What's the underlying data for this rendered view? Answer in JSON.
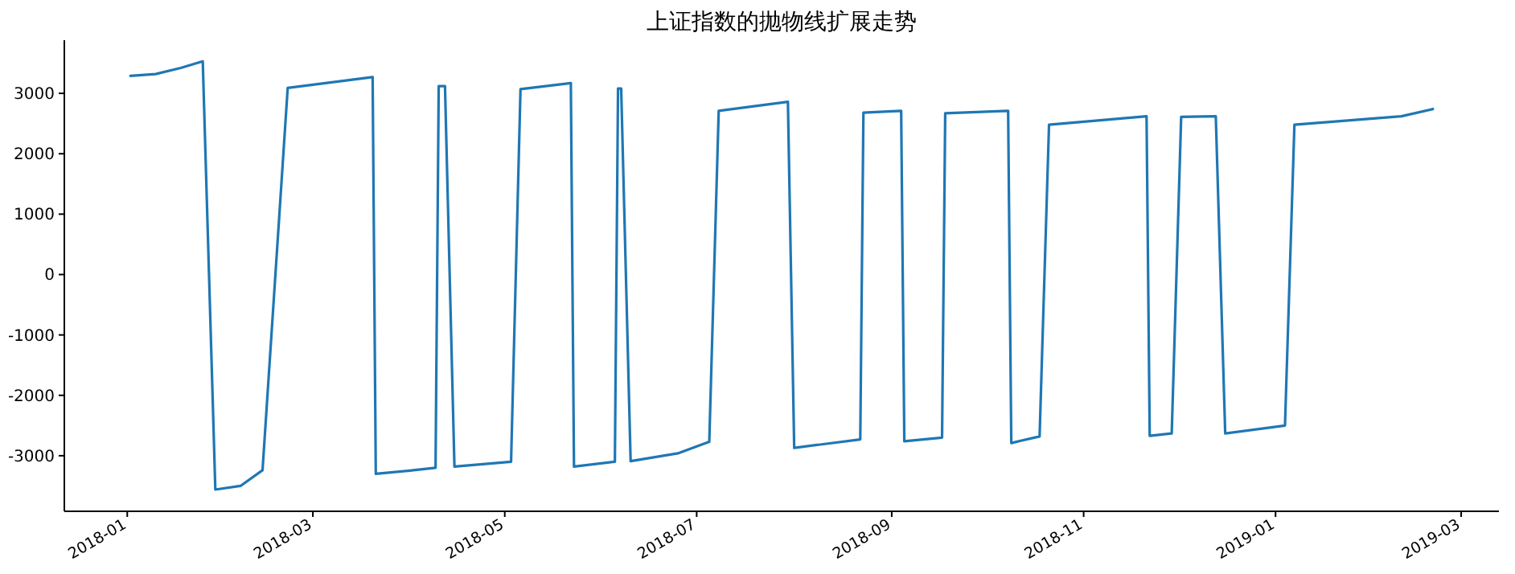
{
  "chart_data": {
    "type": "line",
    "title": "上证指数的抛物线扩展走势",
    "x": [
      "2018-01-02",
      "2018-01-10",
      "2018-01-18",
      "2018-01-25",
      "2018-01-29",
      "2018-02-06",
      "2018-02-13",
      "2018-02-21",
      "2018-03-05",
      "2018-03-20",
      "2018-03-21",
      "2018-04-02",
      "2018-04-09",
      "2018-04-10",
      "2018-04-12",
      "2018-04-15",
      "2018-05-03",
      "2018-05-06",
      "2018-05-22",
      "2018-05-23",
      "2018-06-05",
      "2018-06-06",
      "2018-06-07",
      "2018-06-10",
      "2018-06-25",
      "2018-07-05",
      "2018-07-08",
      "2018-07-30",
      "2018-08-01",
      "2018-08-22",
      "2018-08-23",
      "2018-09-04",
      "2018-09-05",
      "2018-09-17",
      "2018-09-18",
      "2018-10-08",
      "2018-10-09",
      "2018-10-18",
      "2018-10-21",
      "2018-11-21",
      "2018-11-22",
      "2018-11-29",
      "2018-12-02",
      "2018-12-13",
      "2018-12-16",
      "2019-01-04",
      "2019-01-07",
      "2019-02-10",
      "2019-02-20"
    ],
    "series": [
      {
        "color": "#1f77b4",
        "values": [
          3290,
          3320,
          3420,
          3530,
          -3560,
          -3500,
          -3240,
          3090,
          3170,
          3270,
          -3300,
          -3240,
          -3200,
          3120,
          3120,
          -3180,
          -3100,
          3070,
          3170,
          -3180,
          -3100,
          3080,
          3080,
          -3090,
          -2960,
          -2770,
          2710,
          2860,
          -2870,
          -2730,
          2680,
          2710,
          -2760,
          -2700,
          2670,
          2710,
          -2790,
          -2680,
          2480,
          2620,
          -2670,
          -2630,
          2610,
          2620,
          -2630,
          -2500,
          2480,
          2620,
          2740
        ]
      }
    ],
    "xlim": [
      "2017-12-12",
      "2019-03-13"
    ],
    "ylim": [
      -3920,
      3880
    ],
    "xticks": [
      "2018-01",
      "2018-03",
      "2018-05",
      "2018-07",
      "2018-09",
      "2018-11",
      "2019-01",
      "2019-03"
    ],
    "yticks": [
      -3000,
      -2000,
      -1000,
      0,
      1000,
      2000,
      3000
    ],
    "grid": false,
    "marker": "none",
    "line_style": "solid"
  }
}
